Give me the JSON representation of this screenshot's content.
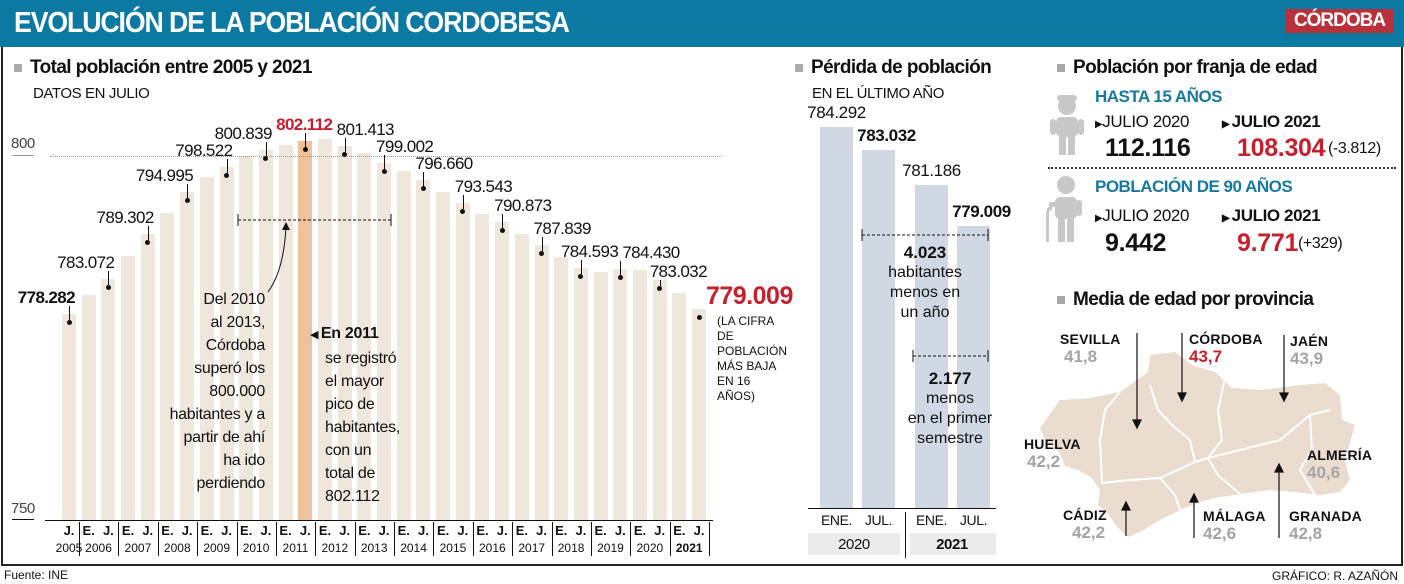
{
  "header": {
    "title": "EVOLUCIÓN DE LA POBLACIÓN CORDOBESA",
    "logo": "CÓRDOBA"
  },
  "colors": {
    "header": "#0c79a3",
    "accent_red": "#c4202e",
    "bar": "#efe6dc",
    "bar_highlight": "#efc29b",
    "blue_bar": "#cfd8e3",
    "map": "#ebdcd0"
  },
  "chart_data": [
    {
      "type": "bar",
      "title": "Total población entre 2005 y 2021",
      "subtitle": "DATOS EN JULIO",
      "ylim": [
        750,
        805
      ],
      "yticks": [
        "800",
        "750"
      ],
      "categories": [
        "J.2005",
        "E.2006",
        "J.2006",
        "E.2007",
        "J.2007",
        "E.2008",
        "J.2008",
        "E.2009",
        "J.2009",
        "E.2010",
        "J.2010",
        "E.2011",
        "J.2011",
        "E.2012",
        "J.2012",
        "E.2013",
        "J.2013",
        "E.2014",
        "J.2014",
        "E.2015",
        "J.2015",
        "E.2016",
        "J.2016",
        "E.2017",
        "J.2017",
        "E.2018",
        "J.2018",
        "E.2019",
        "J.2019",
        "E.2020",
        "J.2020",
        "E.2021",
        "J.2021"
      ],
      "values": [
        778282,
        780900,
        783072,
        786300,
        789302,
        792200,
        794995,
        797100,
        798522,
        800000,
        800839,
        801500,
        802112,
        802400,
        801413,
        800400,
        799002,
        797900,
        796660,
        795100,
        793543,
        792100,
        790873,
        789300,
        787839,
        786100,
        784593,
        784100,
        784430,
        784292,
        783032,
        781186,
        779009
      ],
      "labels": {
        "0": "778.282",
        "2": "783.072",
        "4": "789.302",
        "6": "794.995",
        "8": "798.522",
        "10": "800.839",
        "12": "802.112",
        "14": "801.413",
        "16": "799.002",
        "18": "796.660",
        "20": "793.543",
        "22": "790.873",
        "24": "787.839",
        "26": "784.593",
        "28": "784.430",
        "30": "783.032",
        "32": "779.009"
      },
      "highlight_index": 12,
      "years": [
        "2005",
        "2006",
        "2007",
        "2008",
        "2009",
        "2010",
        "2011",
        "2012",
        "2013",
        "2014",
        "2015",
        "2016",
        "2017",
        "2018",
        "2019",
        "2020",
        "2021"
      ],
      "month_labels": {
        "E": "E.",
        "J": "J."
      }
    },
    {
      "type": "bar",
      "title": "Pérdida de población",
      "subtitle": "EN EL ÚLTIMO AÑO",
      "ylim": [
        764,
        786
      ],
      "categories": [
        "ENE.",
        "JUL.",
        "ENE.",
        "JUL."
      ],
      "groups": [
        "2020",
        "2021"
      ],
      "values": [
        784292,
        783032,
        781186,
        779009
      ],
      "labels": [
        "784.292",
        "783.032",
        "781.186",
        "779.009"
      ]
    }
  ],
  "annotations": {
    "range_note": [
      "Del 2010",
      "al 2013,",
      "Córdoba",
      "superó los",
      "800.000",
      "habitantes y a",
      "partir de ahí",
      "ha ido",
      "perdiendo"
    ],
    "peak_title": "En 2011",
    "peak_note": [
      "se registró",
      "el mayor",
      "pico de",
      "habitantes,",
      "con un",
      "total de",
      "802.112"
    ],
    "low_value": "779.009",
    "low_note": [
      "(LA CIFRA",
      "DE",
      "POBLACIÓN",
      "MÁS BAJA",
      "EN 16",
      "AÑOS)"
    ],
    "loss_year": {
      "value": "4.023",
      "lines": [
        "habitantes",
        "menos en",
        "un año"
      ]
    },
    "loss_semester": {
      "value": "2.177",
      "lines": [
        "menos",
        "en el primer",
        "semestre"
      ]
    }
  },
  "age": {
    "title": "Población por franja de edad",
    "groups": [
      {
        "title": "HASTA 15 AÑOS",
        "label_a": "JULIO 2020",
        "label_b": "JULIO 2021",
        "value_a": "112.116",
        "value_b": "108.304",
        "diff": "(-3.812)"
      },
      {
        "title": "POBLACIÓN DE 90 AÑOS",
        "label_a": "JULIO 2020",
        "label_b": "JULIO 2021",
        "value_a": "9.442",
        "value_b": "9.771",
        "diff": "(+329)"
      }
    ]
  },
  "map": {
    "title": "Media de edad por provincia",
    "provinces": [
      {
        "name": "SEVILLA",
        "value": "41,8"
      },
      {
        "name": "CÓRDOBA",
        "value": "43,7"
      },
      {
        "name": "JAÉN",
        "value": "43,9"
      },
      {
        "name": "HUELVA",
        "value": "42,2"
      },
      {
        "name": "ALMERÍA",
        "value": "40,6"
      },
      {
        "name": "CÁDIZ",
        "value": "42,2"
      },
      {
        "name": "MÁLAGA",
        "value": "42,6"
      },
      {
        "name": "GRANADA",
        "value": "42,8"
      }
    ]
  },
  "footer": {
    "source": "Fuente: INE",
    "credit": "GRÁFICO: R. AZAÑÓN"
  }
}
